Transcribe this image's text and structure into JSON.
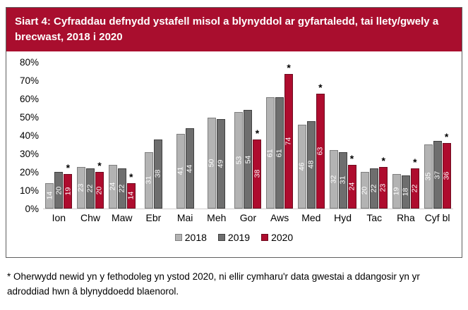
{
  "header": {
    "title": "Siart 4: Cyfraddau defnydd ystafell misol a blynyddol ar gyfartaledd, tai llety/gwely a brecwast, 2018 i 2020",
    "background": "#A90E2E",
    "text_color": "#FFFFFF"
  },
  "chart_data": {
    "type": "bar",
    "title": "Siart 4: Cyfraddau defnydd ystafell misol a blynyddol ar gyfartaledd, tai llety/gwely a brecwast, 2018 i 2020",
    "categories": [
      "Ion",
      "Chw",
      "Maw",
      "Ebr",
      "Mai",
      "Meh",
      "Gor",
      "Aws",
      "Med",
      "Hyd",
      "Tac",
      "Rha",
      "Cyf bl"
    ],
    "series": [
      {
        "name": "2018",
        "fill": "#B3B3B3",
        "border": "#7F7F7F",
        "values": [
          14,
          23,
          24,
          31,
          41,
          50,
          53,
          61,
          46,
          32,
          20,
          19,
          35
        ]
      },
      {
        "name": "2019",
        "fill": "#6E6E6E",
        "border": "#404040",
        "values": [
          20,
          22,
          22,
          38,
          44,
          49,
          54,
          61,
          48,
          31,
          22,
          18,
          37
        ]
      },
      {
        "name": "2020",
        "fill": "#AE0C2E",
        "border": "#6E0A1F",
        "values": [
          19,
          20,
          14,
          null,
          null,
          null,
          38,
          74,
          63,
          24,
          23,
          22,
          36
        ],
        "flagged": true
      }
    ],
    "flag_marker": "*",
    "value_labels": "inside-center-rotated-white",
    "ylim": [
      0,
      80
    ],
    "ytick_step": 10,
    "ytick_suffix": "%",
    "grid": false,
    "legend_position": "bottom"
  },
  "footnote": "* Oherwydd newid yn y fethodoleg yn ystod 2020, ni ellir cymharu'r data gwestai a ddangosir yn yr adroddiad hwn â blynyddoedd blaenorol."
}
